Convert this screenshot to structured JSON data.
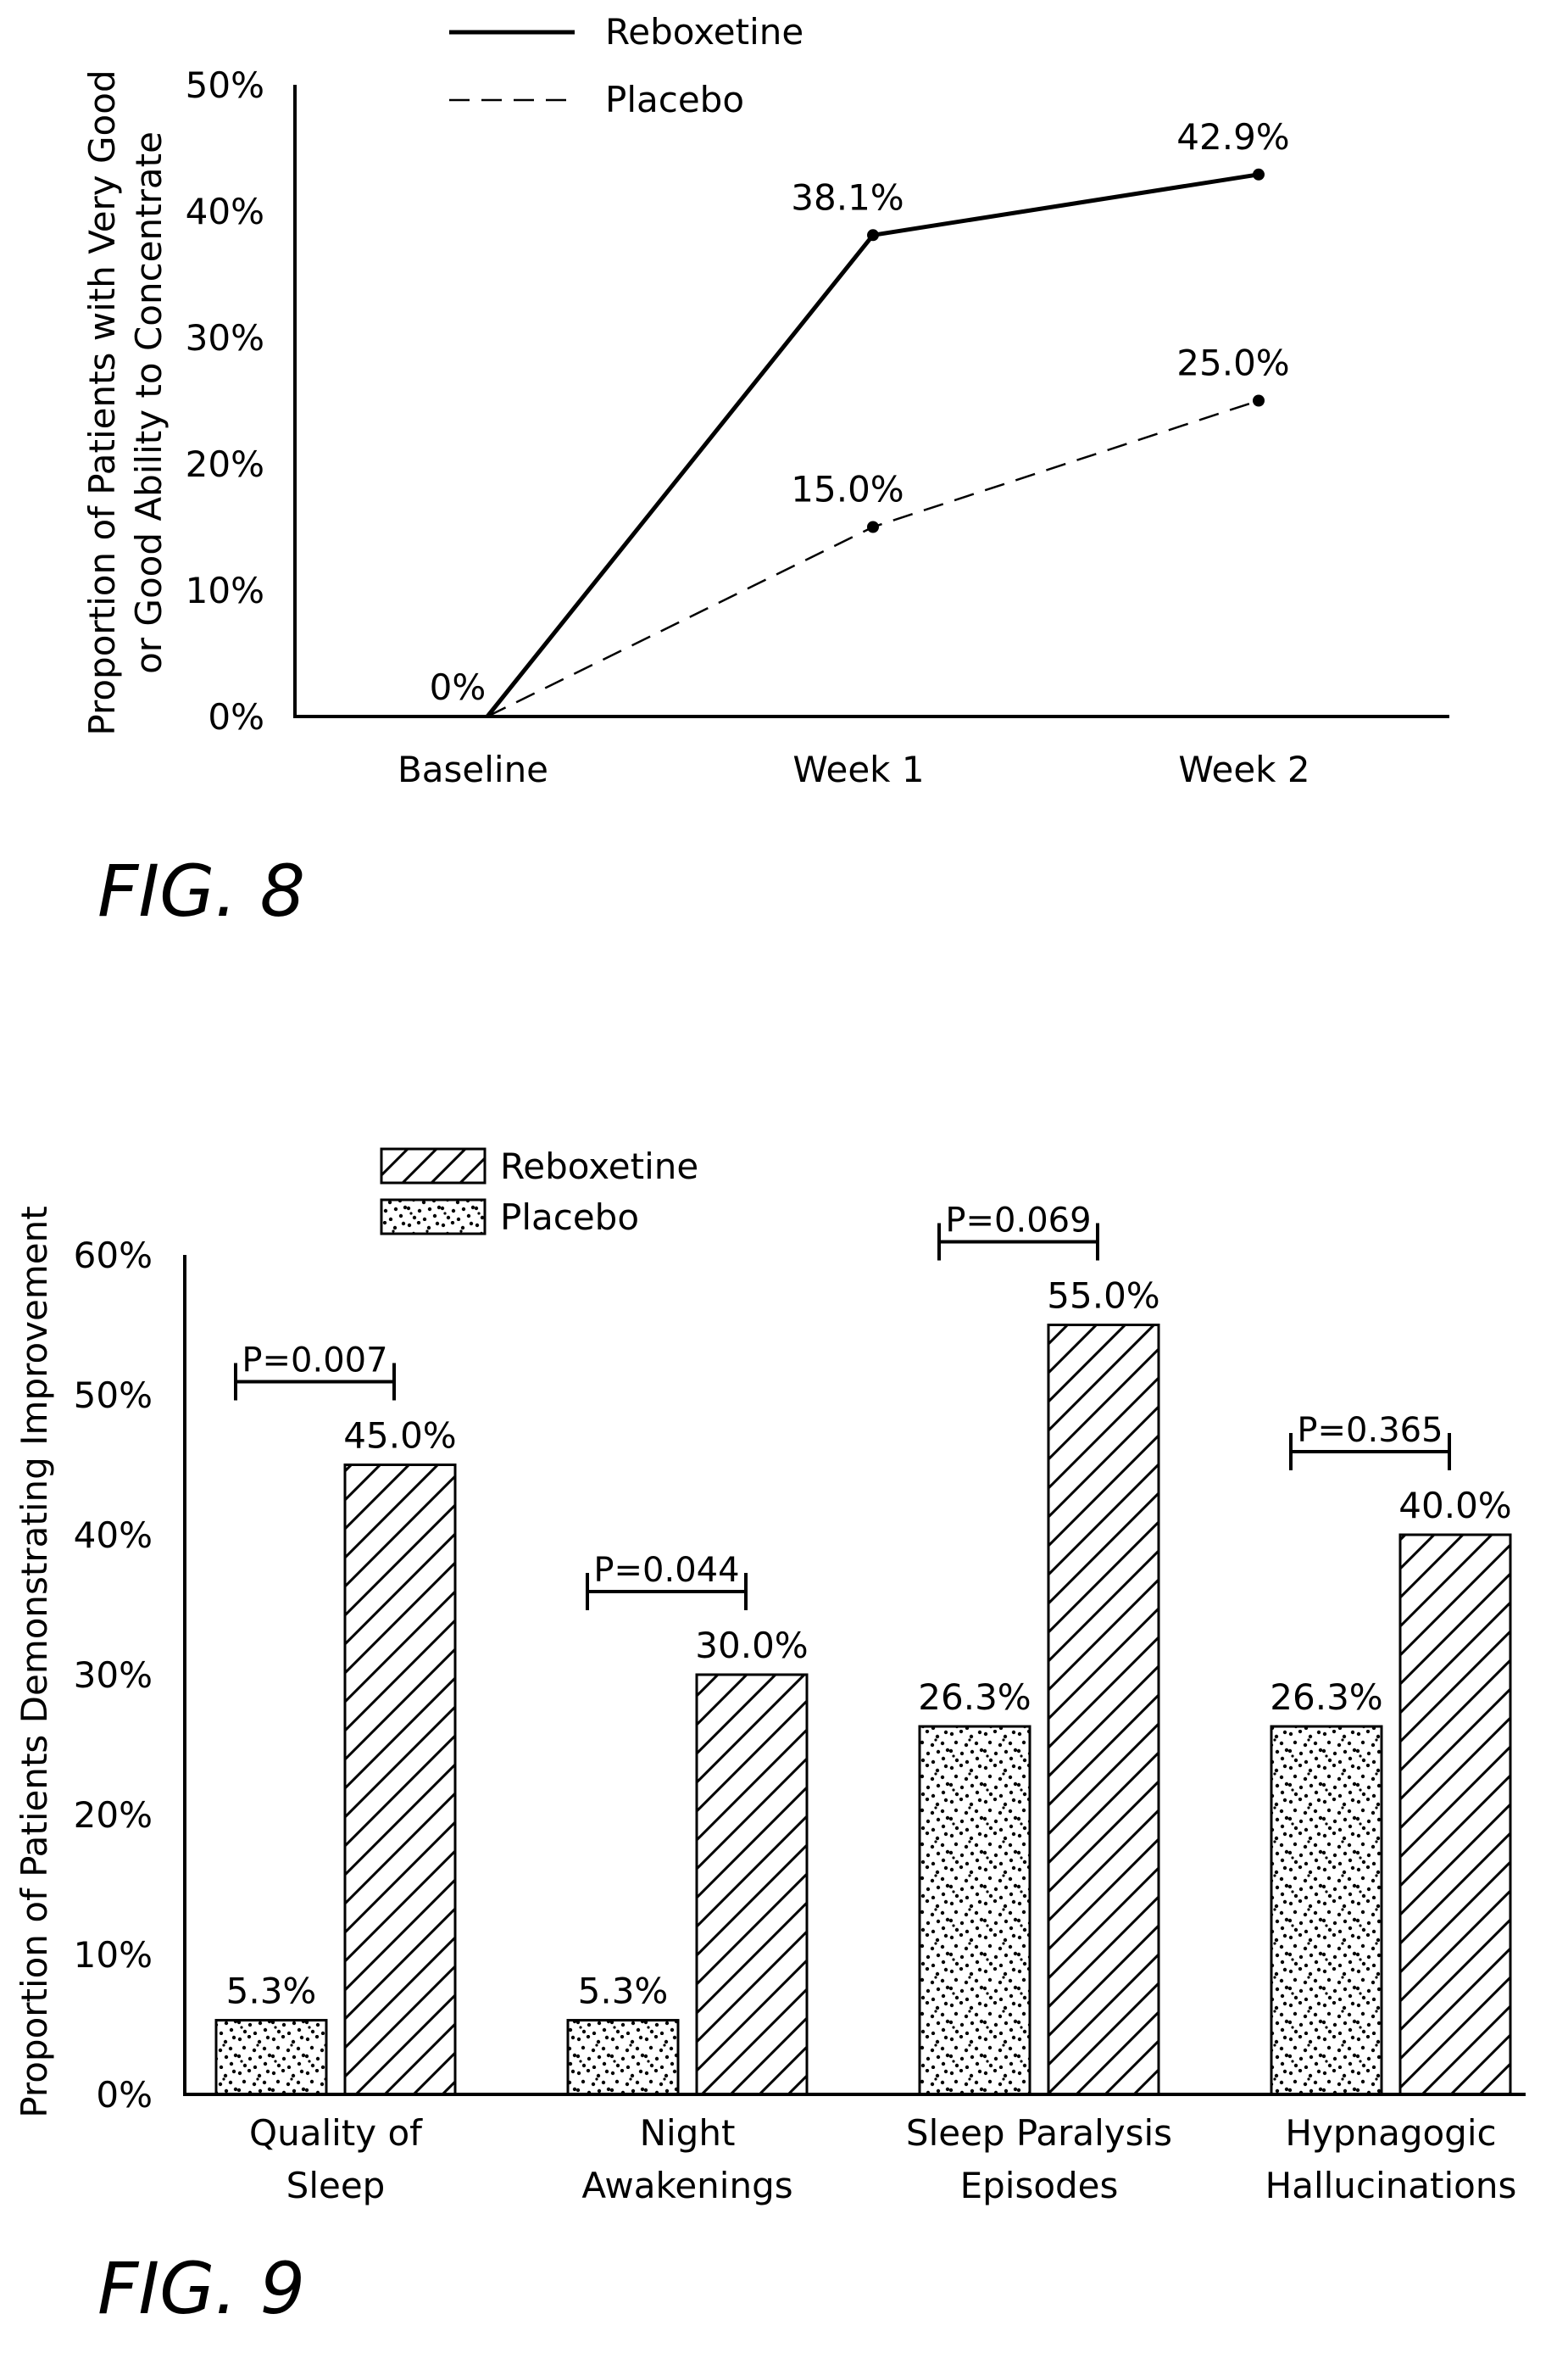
{
  "figures": [
    {
      "label": "FIG. 8",
      "chart_data": {
        "type": "line",
        "title": "",
        "xlabel": "",
        "ylabel_lines": [
          "Proportion of Patients with Very Good",
          "or Good Ability to Concentrate"
        ],
        "categories": [
          "Baseline",
          "Week 1",
          "Week 2"
        ],
        "yticks": [
          "0%",
          "10%",
          "20%",
          "30%",
          "40%",
          "50%"
        ],
        "ylim": [
          0,
          50
        ],
        "legend_position": "top",
        "series": [
          {
            "name": "Reboxetine",
            "style": "solid",
            "values": [
              0,
              38.1,
              42.9
            ],
            "labels": [
              "0%",
              "38.1%",
              "42.9%"
            ]
          },
          {
            "name": "Placebo",
            "style": "dashed",
            "values": [
              0,
              15.0,
              25.0
            ],
            "labels": [
              "",
              "15.0%",
              "25.0%"
            ]
          }
        ]
      }
    },
    {
      "label": "FIG. 9",
      "chart_data": {
        "type": "bar",
        "title": "",
        "xlabel": "",
        "ylabel": "Proportion of Patients Demonstrating Improvement",
        "category_lines": [
          [
            "Quality of",
            "Sleep"
          ],
          [
            "Night",
            "Awakenings"
          ],
          [
            "Sleep Paralysis",
            "Episodes"
          ],
          [
            "Hypnagogic",
            "Hallucinations"
          ]
        ],
        "yticks": [
          "0%",
          "10%",
          "20%",
          "30%",
          "40%",
          "50%",
          "60%"
        ],
        "ylim": [
          0,
          60
        ],
        "legend_position": "top-left",
        "series": [
          {
            "name": "Placebo",
            "pattern": "dots",
            "values": [
              5.3,
              5.3,
              26.3,
              26.3
            ],
            "labels": [
              "5.3%",
              "5.3%",
              "26.3%",
              "26.3%"
            ]
          },
          {
            "name": "Reboxetine",
            "pattern": "hatch",
            "values": [
              45.0,
              30.0,
              55.0,
              40.0
            ],
            "labels": [
              "45.0%",
              "30.0%",
              "55.0%",
              "40.0%"
            ]
          }
        ],
        "pvalues": [
          "P=0.007",
          "P=0.044",
          "P=0.069",
          "P=0.365"
        ]
      }
    }
  ]
}
